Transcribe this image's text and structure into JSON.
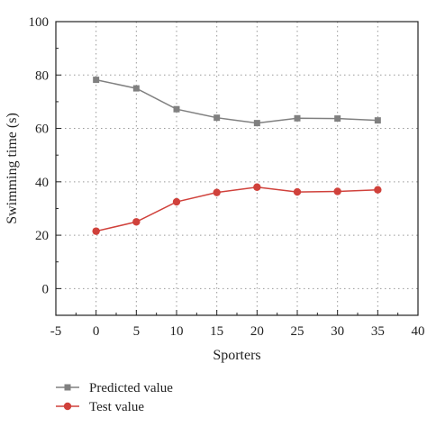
{
  "chart_data": {
    "type": "line",
    "title": "",
    "xlabel": "Sporters",
    "ylabel": "Swimming time (s)",
    "xlim": [
      -5,
      40
    ],
    "ylim": [
      -10,
      100
    ],
    "x_ticks": [
      -5,
      0,
      5,
      10,
      15,
      20,
      25,
      30,
      35,
      40
    ],
    "y_ticks": [
      0,
      20,
      40,
      60,
      80,
      100
    ],
    "x_tick_labels": [
      "-5",
      "0",
      "5",
      "10",
      "15",
      "20",
      "25",
      "30",
      "35",
      "40"
    ],
    "y_tick_labels": [
      "0",
      "20",
      "40",
      "60",
      "80",
      "100"
    ],
    "grid": true,
    "legend_position": "bottom",
    "x": [
      0,
      5,
      10,
      15,
      20,
      25,
      30,
      35
    ],
    "series": [
      {
        "name": "Predicted value",
        "values": [
          78.2,
          75.0,
          67.2,
          64.0,
          62.0,
          63.8,
          63.7,
          63.0
        ],
        "color": "#808080",
        "marker": "square"
      },
      {
        "name": "Test value",
        "values": [
          21.5,
          25.0,
          32.5,
          36.0,
          38.0,
          36.2,
          36.4,
          37.0
        ],
        "color": "#d0413b",
        "marker": "circle"
      }
    ]
  }
}
